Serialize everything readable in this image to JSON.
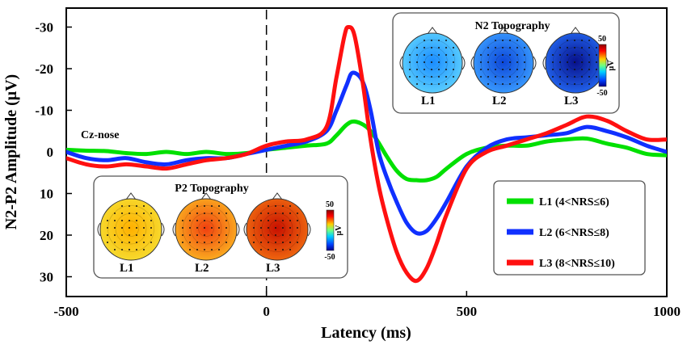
{
  "chart_data": {
    "type": "line",
    "xlabel": "Latency (ms)",
    "ylabel": "N2-P2 Amplitude (μV)",
    "xlim": [
      -500,
      1000
    ],
    "ylim": [
      -35,
      35
    ],
    "y_inverted": true,
    "x_ticks": [
      -500,
      0,
      500,
      1000
    ],
    "x_tick_labels": [
      "-500",
      "0",
      "500",
      "1000"
    ],
    "y_ticks": [
      -30,
      -20,
      -10,
      0,
      10,
      20,
      30
    ],
    "y_tick_labels": [
      "-30",
      "-20",
      "-10",
      "0",
      "10",
      "20",
      "30"
    ],
    "annotation": "Cz-nose",
    "stimulus_onset_ms": 0,
    "series": [
      {
        "name": "L1 (4<NRS≤6)",
        "color": "#00e000",
        "x": [
          -500,
          -450,
          -400,
          -350,
          -300,
          -250,
          -200,
          -150,
          -100,
          -50,
          0,
          50,
          100,
          150,
          175,
          200,
          220,
          250,
          275,
          300,
          325,
          350,
          375,
          400,
          425,
          450,
          500,
          550,
          600,
          650,
          700,
          750,
          800,
          850,
          900,
          950,
          1000
        ],
        "y": [
          -0.5,
          -0.3,
          -0.2,
          0.3,
          0.5,
          0.0,
          0.5,
          0.0,
          0.5,
          0.3,
          -0.5,
          -1.0,
          -1.5,
          -2.0,
          -4.0,
          -6.5,
          -7.3,
          -6.0,
          -3.0,
          1.0,
          4.5,
          6.5,
          6.8,
          6.8,
          6.0,
          4.0,
          0.5,
          -1.0,
          -1.5,
          -1.5,
          -2.5,
          -3.0,
          -3.2,
          -2.0,
          -1.0,
          0.5,
          0.8
        ]
      },
      {
        "name": "L2 (6<NRS≤8)",
        "color": "#1030ff",
        "x": [
          -500,
          -450,
          -400,
          -350,
          -300,
          -250,
          -200,
          -150,
          -100,
          -50,
          0,
          50,
          100,
          150,
          175,
          200,
          215,
          240,
          260,
          280,
          300,
          325,
          350,
          375,
          400,
          425,
          450,
          500,
          550,
          600,
          650,
          700,
          750,
          800,
          850,
          900,
          950,
          1000
        ],
        "y": [
          0.0,
          1.5,
          2.0,
          1.5,
          2.5,
          3.0,
          2.0,
          1.5,
          1.5,
          0.5,
          -0.5,
          -1.5,
          -2.5,
          -5.0,
          -10.0,
          -16.0,
          -19.0,
          -17.0,
          -10.0,
          0.0,
          6.0,
          12.0,
          17.0,
          19.5,
          19.0,
          16.0,
          12.0,
          3.5,
          -1.0,
          -3.0,
          -3.5,
          -4.0,
          -4.5,
          -6.0,
          -5.0,
          -3.5,
          -1.5,
          0.0
        ]
      },
      {
        "name": "L3 (8<NRS≤10)",
        "color": "#ff1010",
        "x": [
          -500,
          -450,
          -400,
          -350,
          -300,
          -250,
          -200,
          -150,
          -100,
          -50,
          0,
          50,
          100,
          150,
          175,
          195,
          205,
          220,
          240,
          260,
          280,
          300,
          325,
          350,
          375,
          400,
          425,
          450,
          500,
          550,
          600,
          650,
          700,
          750,
          800,
          850,
          900,
          950,
          1000
        ],
        "y": [
          1.5,
          3.0,
          3.5,
          3.0,
          3.5,
          4.0,
          3.0,
          2.0,
          1.5,
          0.5,
          -1.5,
          -2.5,
          -3.0,
          -6.0,
          -18.0,
          -28.0,
          -30.0,
          -28.0,
          -17.0,
          -3.0,
          8.0,
          16.0,
          24.0,
          29.0,
          31.0,
          28.0,
          22.0,
          15.0,
          4.0,
          0.0,
          -1.5,
          -3.0,
          -4.5,
          -6.5,
          -8.5,
          -7.5,
          -5.0,
          -3.0,
          -3.0
        ]
      }
    ],
    "legend": {
      "placement": "bottom-right",
      "entries": [
        "L1 (4<NRS≤6)",
        "L2 (6<NRS≤8)",
        "L3 (8<NRS≤10)"
      ]
    },
    "insets": [
      {
        "title": "N2 Topography",
        "placement": "top-right",
        "colorbar_max": "50",
        "colorbar_min": "-50",
        "colorbar_unit": "μV",
        "maps": [
          {
            "label": "L1",
            "inner_color": "#1a8cff",
            "outer_color": "#5cd0ff"
          },
          {
            "label": "L2",
            "inner_color": "#0d47d9",
            "outer_color": "#3a9cff"
          },
          {
            "label": "L3",
            "inner_color": "#08108a",
            "outer_color": "#2266f0"
          }
        ]
      },
      {
        "title": "P2 Topography",
        "placement": "bottom-left",
        "colorbar_max": "50",
        "colorbar_min": "-50",
        "colorbar_unit": "μV",
        "maps": [
          {
            "label": "L1",
            "inner_color": "#ffb000",
            "outer_color": "#f6dc30"
          },
          {
            "label": "L2",
            "inner_color": "#f04010",
            "outer_color": "#fbb020"
          },
          {
            "label": "L3",
            "inner_color": "#c81000",
            "outer_color": "#f06a10"
          }
        ]
      }
    ]
  }
}
